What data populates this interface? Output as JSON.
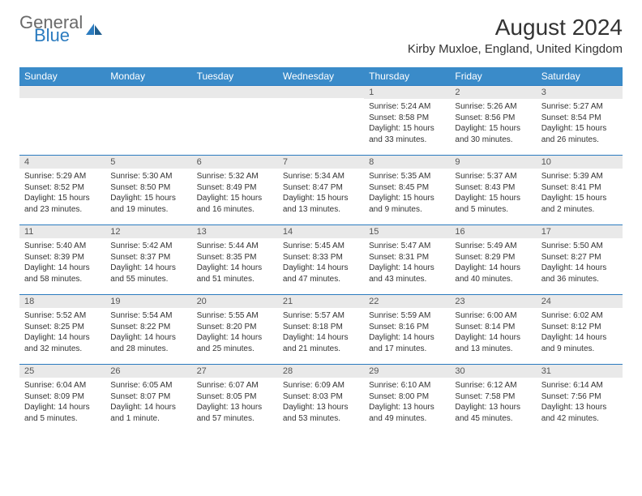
{
  "brand": {
    "part1": "General",
    "part2": "Blue",
    "icon_color": "#2b7bbf"
  },
  "title": "August 2024",
  "location": "Kirby Muxloe, England, United Kingdom",
  "colors": {
    "header_bg": "#3a8bc9",
    "daynum_bg": "#e9e9e9",
    "row_border": "#2b7bbf"
  },
  "weekdays": [
    "Sunday",
    "Monday",
    "Tuesday",
    "Wednesday",
    "Thursday",
    "Friday",
    "Saturday"
  ],
  "weeks": [
    [
      null,
      null,
      null,
      null,
      {
        "n": "1",
        "sr": "Sunrise: 5:24 AM",
        "ss": "Sunset: 8:58 PM",
        "dl": "Daylight: 15 hours and 33 minutes."
      },
      {
        "n": "2",
        "sr": "Sunrise: 5:26 AM",
        "ss": "Sunset: 8:56 PM",
        "dl": "Daylight: 15 hours and 30 minutes."
      },
      {
        "n": "3",
        "sr": "Sunrise: 5:27 AM",
        "ss": "Sunset: 8:54 PM",
        "dl": "Daylight: 15 hours and 26 minutes."
      }
    ],
    [
      {
        "n": "4",
        "sr": "Sunrise: 5:29 AM",
        "ss": "Sunset: 8:52 PM",
        "dl": "Daylight: 15 hours and 23 minutes."
      },
      {
        "n": "5",
        "sr": "Sunrise: 5:30 AM",
        "ss": "Sunset: 8:50 PM",
        "dl": "Daylight: 15 hours and 19 minutes."
      },
      {
        "n": "6",
        "sr": "Sunrise: 5:32 AM",
        "ss": "Sunset: 8:49 PM",
        "dl": "Daylight: 15 hours and 16 minutes."
      },
      {
        "n": "7",
        "sr": "Sunrise: 5:34 AM",
        "ss": "Sunset: 8:47 PM",
        "dl": "Daylight: 15 hours and 13 minutes."
      },
      {
        "n": "8",
        "sr": "Sunrise: 5:35 AM",
        "ss": "Sunset: 8:45 PM",
        "dl": "Daylight: 15 hours and 9 minutes."
      },
      {
        "n": "9",
        "sr": "Sunrise: 5:37 AM",
        "ss": "Sunset: 8:43 PM",
        "dl": "Daylight: 15 hours and 5 minutes."
      },
      {
        "n": "10",
        "sr": "Sunrise: 5:39 AM",
        "ss": "Sunset: 8:41 PM",
        "dl": "Daylight: 15 hours and 2 minutes."
      }
    ],
    [
      {
        "n": "11",
        "sr": "Sunrise: 5:40 AM",
        "ss": "Sunset: 8:39 PM",
        "dl": "Daylight: 14 hours and 58 minutes."
      },
      {
        "n": "12",
        "sr": "Sunrise: 5:42 AM",
        "ss": "Sunset: 8:37 PM",
        "dl": "Daylight: 14 hours and 55 minutes."
      },
      {
        "n": "13",
        "sr": "Sunrise: 5:44 AM",
        "ss": "Sunset: 8:35 PM",
        "dl": "Daylight: 14 hours and 51 minutes."
      },
      {
        "n": "14",
        "sr": "Sunrise: 5:45 AM",
        "ss": "Sunset: 8:33 PM",
        "dl": "Daylight: 14 hours and 47 minutes."
      },
      {
        "n": "15",
        "sr": "Sunrise: 5:47 AM",
        "ss": "Sunset: 8:31 PM",
        "dl": "Daylight: 14 hours and 43 minutes."
      },
      {
        "n": "16",
        "sr": "Sunrise: 5:49 AM",
        "ss": "Sunset: 8:29 PM",
        "dl": "Daylight: 14 hours and 40 minutes."
      },
      {
        "n": "17",
        "sr": "Sunrise: 5:50 AM",
        "ss": "Sunset: 8:27 PM",
        "dl": "Daylight: 14 hours and 36 minutes."
      }
    ],
    [
      {
        "n": "18",
        "sr": "Sunrise: 5:52 AM",
        "ss": "Sunset: 8:25 PM",
        "dl": "Daylight: 14 hours and 32 minutes."
      },
      {
        "n": "19",
        "sr": "Sunrise: 5:54 AM",
        "ss": "Sunset: 8:22 PM",
        "dl": "Daylight: 14 hours and 28 minutes."
      },
      {
        "n": "20",
        "sr": "Sunrise: 5:55 AM",
        "ss": "Sunset: 8:20 PM",
        "dl": "Daylight: 14 hours and 25 minutes."
      },
      {
        "n": "21",
        "sr": "Sunrise: 5:57 AM",
        "ss": "Sunset: 8:18 PM",
        "dl": "Daylight: 14 hours and 21 minutes."
      },
      {
        "n": "22",
        "sr": "Sunrise: 5:59 AM",
        "ss": "Sunset: 8:16 PM",
        "dl": "Daylight: 14 hours and 17 minutes."
      },
      {
        "n": "23",
        "sr": "Sunrise: 6:00 AM",
        "ss": "Sunset: 8:14 PM",
        "dl": "Daylight: 14 hours and 13 minutes."
      },
      {
        "n": "24",
        "sr": "Sunrise: 6:02 AM",
        "ss": "Sunset: 8:12 PM",
        "dl": "Daylight: 14 hours and 9 minutes."
      }
    ],
    [
      {
        "n": "25",
        "sr": "Sunrise: 6:04 AM",
        "ss": "Sunset: 8:09 PM",
        "dl": "Daylight: 14 hours and 5 minutes."
      },
      {
        "n": "26",
        "sr": "Sunrise: 6:05 AM",
        "ss": "Sunset: 8:07 PM",
        "dl": "Daylight: 14 hours and 1 minute."
      },
      {
        "n": "27",
        "sr": "Sunrise: 6:07 AM",
        "ss": "Sunset: 8:05 PM",
        "dl": "Daylight: 13 hours and 57 minutes."
      },
      {
        "n": "28",
        "sr": "Sunrise: 6:09 AM",
        "ss": "Sunset: 8:03 PM",
        "dl": "Daylight: 13 hours and 53 minutes."
      },
      {
        "n": "29",
        "sr": "Sunrise: 6:10 AM",
        "ss": "Sunset: 8:00 PM",
        "dl": "Daylight: 13 hours and 49 minutes."
      },
      {
        "n": "30",
        "sr": "Sunrise: 6:12 AM",
        "ss": "Sunset: 7:58 PM",
        "dl": "Daylight: 13 hours and 45 minutes."
      },
      {
        "n": "31",
        "sr": "Sunrise: 6:14 AM",
        "ss": "Sunset: 7:56 PM",
        "dl": "Daylight: 13 hours and 42 minutes."
      }
    ]
  ]
}
